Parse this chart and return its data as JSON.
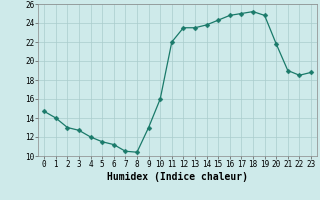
{
  "x": [
    0,
    1,
    2,
    3,
    4,
    5,
    6,
    7,
    8,
    9,
    10,
    11,
    12,
    13,
    14,
    15,
    16,
    17,
    18,
    19,
    20,
    21,
    22,
    23
  ],
  "y": [
    14.7,
    14.0,
    13.0,
    12.7,
    12.0,
    11.5,
    11.2,
    10.5,
    10.4,
    13.0,
    16.0,
    22.0,
    23.5,
    23.5,
    23.8,
    24.3,
    24.8,
    25.0,
    25.2,
    24.8,
    21.8,
    19.0,
    18.5,
    18.8
  ],
  "line_color": "#1a7a6a",
  "marker": "D",
  "marker_size": 2.5,
  "bg_color": "#ceeaea",
  "grid_color": "#aacccc",
  "xlabel": "Humidex (Indice chaleur)",
  "ylim": [
    10,
    26
  ],
  "xlim": [
    -0.5,
    23.5
  ],
  "yticks": [
    10,
    12,
    14,
    16,
    18,
    20,
    22,
    24,
    26
  ],
  "xticks": [
    0,
    1,
    2,
    3,
    4,
    5,
    6,
    7,
    8,
    9,
    10,
    11,
    12,
    13,
    14,
    15,
    16,
    17,
    18,
    19,
    20,
    21,
    22,
    23
  ],
  "xlabel_fontsize": 7,
  "tick_fontsize": 5.5
}
